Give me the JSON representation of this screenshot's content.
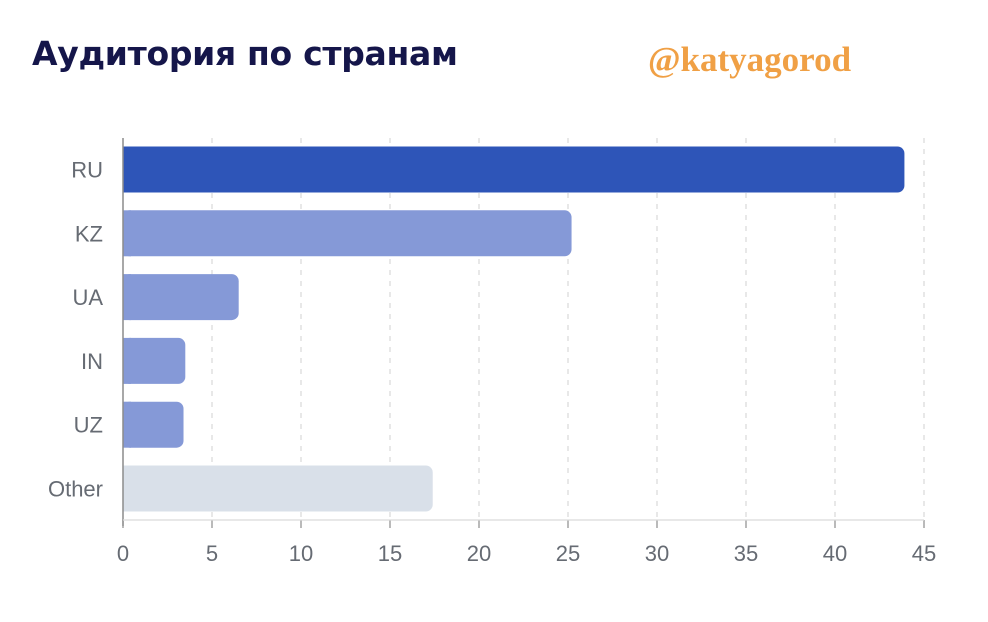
{
  "header": {
    "title": "Аудитория по странам",
    "handle": "@katyagorod"
  },
  "colors": {
    "title": "#15164a",
    "handle": "#f0a045",
    "primary_bar": "#2e55b8",
    "secondary_bar": "#8599d7",
    "other_bar": "#d9e0e9",
    "grid": "#d9d9d9",
    "axis": "#8c8c8c"
  },
  "chart_data": {
    "type": "bar",
    "orientation": "horizontal",
    "categories": [
      "RU",
      "KZ",
      "UA",
      "IN",
      "UZ",
      "Other"
    ],
    "values": [
      43.9,
      25.2,
      6.5,
      3.5,
      3.4,
      17.4
    ],
    "title": "Аудитория по странам",
    "xlabel": "",
    "ylabel": "",
    "xlim": [
      0,
      45
    ],
    "x_ticks": [
      0,
      5,
      10,
      15,
      20,
      25,
      30,
      35,
      40,
      45
    ],
    "grid": "vertical dashed",
    "legend": "none"
  }
}
